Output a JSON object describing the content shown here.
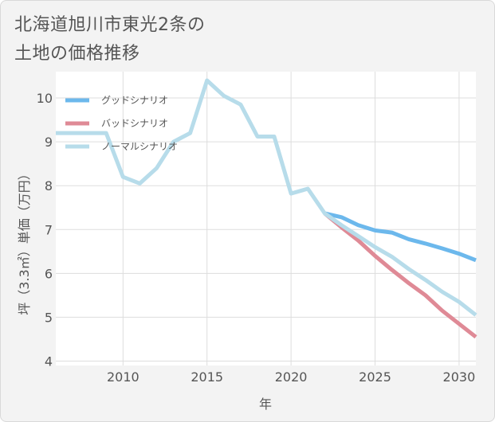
{
  "title": "北海道旭川市東光2条の土地の価格推移",
  "chart_data": {
    "type": "line",
    "xlabel": "年",
    "ylabel": "坪（3.3㎡）単価（万円）",
    "xlim": [
      2006,
      2031
    ],
    "ylim": [
      3.9,
      10.6
    ],
    "xticks": [
      2010,
      2015,
      2020,
      2025,
      2030
    ],
    "yticks": [
      4,
      5,
      6,
      7,
      8,
      9,
      10
    ],
    "grid": true,
    "legend_position": "top-left",
    "series": [
      {
        "name": "グッドシナリオ",
        "color": "#6cb8ec",
        "x": [
          2022,
          2023,
          2024,
          2025,
          2026,
          2027,
          2028,
          2029,
          2030,
          2031
        ],
        "y": [
          7.37,
          7.28,
          7.1,
          6.98,
          6.93,
          6.78,
          6.68,
          6.57,
          6.45,
          6.3
        ]
      },
      {
        "name": "バッドシナリオ",
        "color": "#df8a96",
        "x": [
          2022,
          2023,
          2024,
          2025,
          2026,
          2027,
          2028,
          2029,
          2030,
          2031
        ],
        "y": [
          7.37,
          7.05,
          6.75,
          6.4,
          6.08,
          5.78,
          5.5,
          5.15,
          4.85,
          4.55
        ]
      },
      {
        "name": "ノーマルシナリオ",
        "color": "#b7dcea",
        "x": [
          2006,
          2007,
          2008,
          2009,
          2010,
          2011,
          2012,
          2013,
          2014,
          2015,
          2016,
          2017,
          2018,
          2019,
          2020,
          2021,
          2022,
          2023,
          2024,
          2025,
          2026,
          2027,
          2028,
          2029,
          2030,
          2031
        ],
        "y": [
          9.2,
          9.2,
          9.2,
          9.2,
          8.2,
          8.05,
          8.4,
          9.0,
          9.2,
          10.4,
          10.05,
          9.85,
          9.12,
          9.12,
          7.82,
          7.93,
          7.37,
          7.1,
          6.85,
          6.6,
          6.38,
          6.1,
          5.85,
          5.58,
          5.35,
          5.05
        ]
      }
    ]
  }
}
